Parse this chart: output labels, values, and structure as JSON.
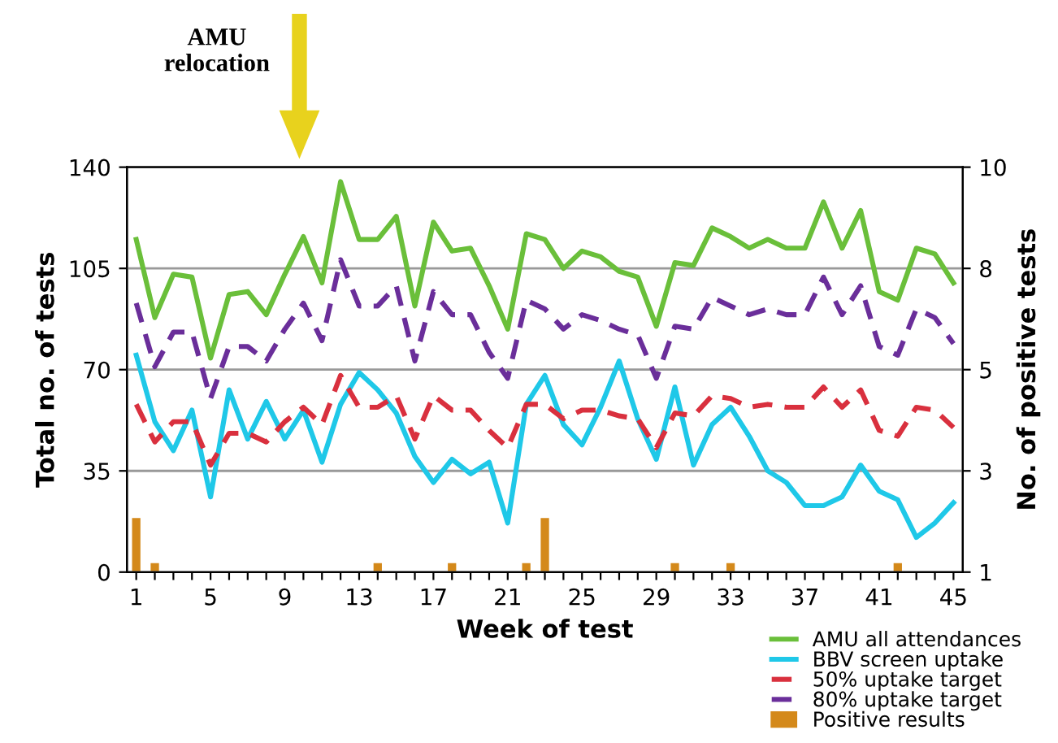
{
  "chart_data": {
    "type": "line",
    "xlabel": "Week of test",
    "ylabel": "Total no. of tests",
    "y2label": "No. of positive tests",
    "x": [
      1,
      2,
      3,
      4,
      5,
      6,
      7,
      8,
      9,
      10,
      11,
      12,
      13,
      14,
      15,
      16,
      17,
      18,
      19,
      20,
      21,
      22,
      23,
      24,
      25,
      26,
      27,
      28,
      29,
      30,
      31,
      32,
      33,
      34,
      35,
      36,
      37,
      38,
      39,
      40,
      41,
      42,
      43,
      44,
      45
    ],
    "series": [
      {
        "name": "AMU all attendances",
        "color": "#6abf3a",
        "line_style": "solid",
        "values": [
          115,
          88,
          103,
          102,
          74,
          96,
          97,
          89,
          103,
          116,
          100,
          135,
          115,
          115,
          123,
          92,
          121,
          111,
          112,
          99,
          84,
          117,
          115,
          105,
          111,
          109,
          104,
          102,
          85,
          107,
          106,
          119,
          116,
          112,
          115,
          112,
          112,
          128,
          112,
          125,
          97,
          94,
          112,
          110,
          100
        ]
      },
      {
        "name": "BBV screen uptake",
        "color": "#1fc8e8",
        "line_style": "solid",
        "values": [
          75,
          52,
          42,
          56,
          26,
          63,
          46,
          59,
          46,
          56,
          38,
          58,
          69,
          63,
          55,
          40,
          31,
          39,
          34,
          38,
          17,
          58,
          68,
          51,
          44,
          57,
          73,
          53,
          39,
          64,
          37,
          51,
          57,
          47,
          35,
          31,
          23,
          23,
          26,
          37,
          28,
          25,
          12,
          17,
          24
        ]
      },
      {
        "name": "50% uptake target",
        "color": "#d9303e",
        "line_style": "dashed",
        "values": [
          58,
          45,
          52,
          52,
          37,
          48,
          48,
          45,
          52,
          57,
          51,
          68,
          57,
          57,
          61,
          46,
          61,
          56,
          56,
          49,
          43,
          58,
          58,
          53,
          56,
          56,
          54,
          53,
          43,
          55,
          54,
          61,
          60,
          57,
          58,
          57,
          57,
          64,
          57,
          63,
          49,
          47,
          57,
          56,
          50
        ]
      },
      {
        "name": "80% uptake target",
        "color": "#6a2e9a",
        "line_style": "dashed",
        "values": [
          93,
          71,
          83,
          83,
          60,
          78,
          78,
          73,
          84,
          93,
          80,
          108,
          92,
          92,
          99,
          73,
          97,
          89,
          89,
          76,
          67,
          94,
          91,
          84,
          89,
          87,
          84,
          82,
          67,
          85,
          84,
          95,
          92,
          89,
          91,
          89,
          89,
          102,
          89,
          99,
          78,
          75,
          91,
          88,
          79
        ]
      },
      {
        "name": "Positive results",
        "color": "#d4891a",
        "type": "bar",
        "axis": "y2",
        "values": [
          2.2,
          1.2,
          null,
          null,
          null,
          null,
          null,
          null,
          null,
          null,
          null,
          null,
          null,
          1.2,
          null,
          null,
          null,
          1.2,
          null,
          null,
          null,
          1.2,
          2.2,
          null,
          null,
          null,
          null,
          null,
          null,
          1.2,
          null,
          null,
          1.2,
          null,
          null,
          null,
          null,
          null,
          null,
          null,
          null,
          1.2,
          null,
          null,
          null
        ]
      }
    ],
    "xlim": [
      0.5,
      45.5
    ],
    "xticks": [
      1,
      {
        "value": 2,
        "label": null
      },
      {
        "value": 3,
        "label": null
      },
      {
        "value": 4,
        "label": null
      },
      5,
      {
        "value": 6,
        "label": null
      },
      {
        "value": 7,
        "label": null
      },
      {
        "value": 8,
        "label": null
      },
      9,
      {
        "value": 10,
        "label": null
      },
      {
        "value": 11,
        "label": null
      },
      {
        "value": 12,
        "label": null
      },
      13,
      {
        "value": 14,
        "label": null
      },
      {
        "value": 15,
        "label": null
      },
      {
        "value": 16,
        "label": null
      },
      17,
      {
        "value": 18,
        "label": null
      },
      {
        "value": 19,
        "label": null
      },
      {
        "value": 20,
        "label": null
      },
      21,
      {
        "value": 22,
        "label": null
      },
      {
        "value": 23,
        "label": null
      },
      {
        "value": 24,
        "label": null
      },
      25,
      {
        "value": 26,
        "label": null
      },
      {
        "value": 27,
        "label": null
      },
      {
        "value": 28,
        "label": null
      },
      29,
      {
        "value": 30,
        "label": null
      },
      {
        "value": 31,
        "label": null
      },
      {
        "value": 32,
        "label": null
      },
      33,
      {
        "value": 34,
        "label": null
      },
      {
        "value": 35,
        "label": null
      },
      {
        "value": 36,
        "label": null
      },
      37,
      {
        "value": 38,
        "label": null
      },
      {
        "value": 39,
        "label": null
      },
      {
        "value": 40,
        "label": null
      },
      41,
      {
        "value": 42,
        "label": null
      },
      {
        "value": 43,
        "label": null
      },
      {
        "value": 44,
        "label": null
      },
      45
    ],
    "ylim": [
      0,
      140
    ],
    "yticks": [
      0,
      35,
      70,
      105,
      140
    ],
    "y2lim": [
      1,
      10
    ],
    "y2ticks": [
      1,
      {
        "value": 3.25,
        "label": "3"
      },
      {
        "value": 5.5,
        "label": "5"
      },
      {
        "value": 7.75,
        "label": "8"
      },
      10
    ],
    "grid": "y",
    "legend": "bottom right",
    "annotations": [
      "AMU\nrelocation"
    ]
  }
}
